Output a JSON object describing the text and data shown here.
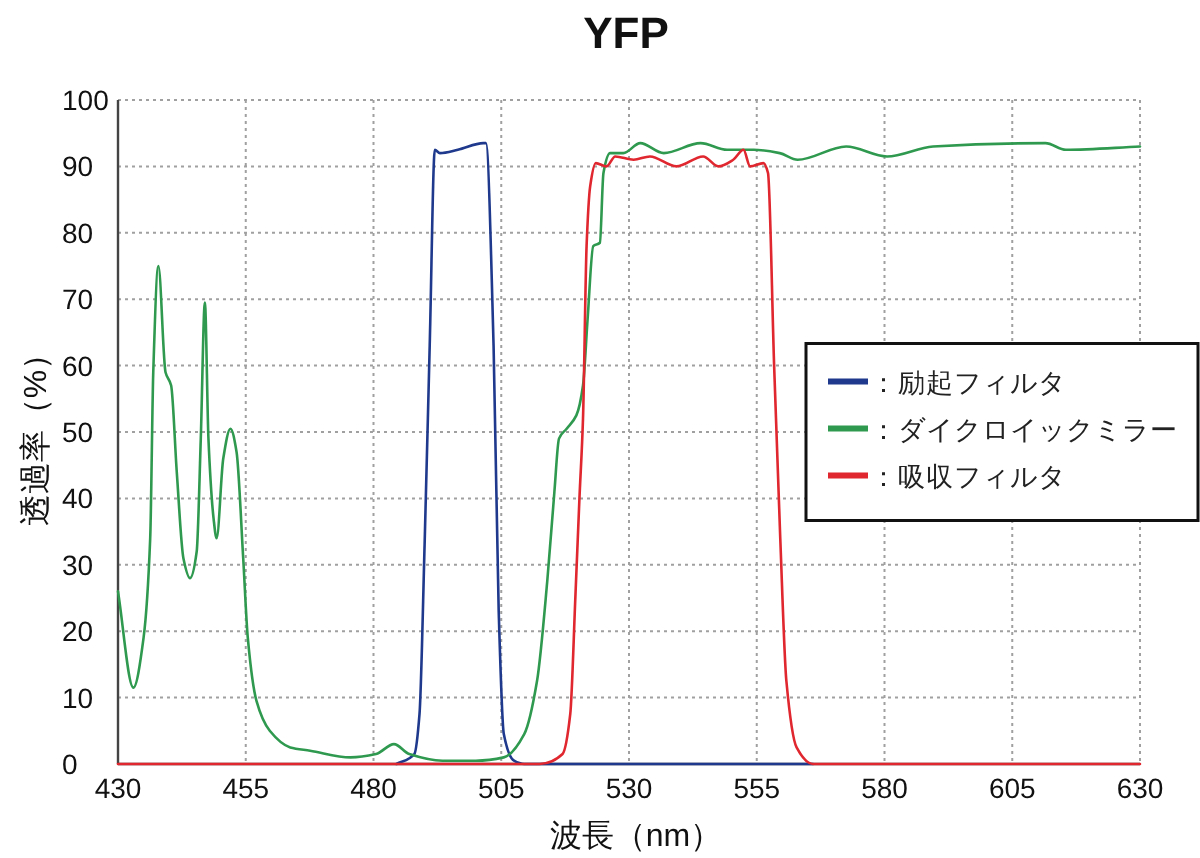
{
  "chart_data": {
    "type": "line",
    "title": "YFP",
    "xlabel": "波長（nm）",
    "ylabel": "透過率（%）",
    "xlim": [
      430,
      630
    ],
    "ylim": [
      0,
      100
    ],
    "xticks": [
      430,
      455,
      480,
      505,
      530,
      555,
      580,
      605,
      630
    ],
    "yticks": [
      0,
      10,
      20,
      30,
      40,
      50,
      60,
      70,
      80,
      90,
      100
    ],
    "grid": true,
    "legend": "right",
    "series": [
      {
        "name": "：励起フィルタ",
        "color": "#1f3a8c",
        "x": [
          484.5,
          488,
          489,
          490,
          491,
          492,
          493,
          496.5,
          501.5,
          502,
          503.5,
          504.5,
          505.5,
          507.5,
          509.5,
          566
        ],
        "values": [
          0,
          1.5,
          7.5,
          33,
          63,
          92.5,
          92,
          92.5,
          93.5,
          93.5,
          63,
          23,
          4.5,
          0.5,
          0,
          0
        ]
      },
      {
        "name": "：ダイクロイックミラー",
        "color": "#2f9a4f",
        "x": [
          430,
          433,
          435,
          436.3,
          436.9,
          437.9,
          439.3,
          440.4,
          441.5,
          442.8,
          444.1,
          445.4,
          446.2,
          447,
          447.7,
          448.7,
          449.3,
          450.6,
          452,
          453.2,
          454.5,
          455.4,
          457.1,
          459.7,
          463.7,
          467.6,
          475.5,
          480.5,
          484,
          487,
          493.5,
          500,
          505.5,
          509.5,
          512,
          514,
          515.4,
          516.3,
          517.8,
          519.7,
          521,
          521.9,
          523,
          524.3,
          525,
          526.3,
          528.9,
          532.2,
          536.8,
          544,
          549.2,
          554.4,
          559.5,
          563,
          572.5,
          580.5,
          589.5,
          611.5,
          615.5,
          630
        ],
        "values": [
          26,
          11.5,
          19,
          34,
          59,
          75,
          59,
          57,
          44,
          31,
          28,
          32,
          49,
          69.5,
          49,
          37,
          34,
          46,
          50.5,
          47,
          31,
          19,
          9.5,
          5,
          2.5,
          2,
          1,
          1.5,
          3,
          1.5,
          0.5,
          0.5,
          1,
          4.5,
          12.5,
          27.5,
          41,
          49,
          50.5,
          52.5,
          57,
          67,
          78,
          78.5,
          89,
          92,
          92,
          93.5,
          92,
          93.5,
          92.5,
          92.5,
          92,
          91,
          93,
          91.5,
          93,
          93.5,
          92.5,
          93
        ]
      },
      {
        "name": "：吸収フィルタ",
        "color": "#e0262e",
        "x": [
          430,
          512.5,
          517,
          518.5,
          519.5,
          520.3,
          521,
          521.7,
          522.4,
          523.5,
          525.6,
          527.3,
          530.9,
          534.1,
          539.3,
          544.5,
          547.5,
          550.4,
          552.4,
          553.7,
          556.3,
          557.2,
          558.4,
          559.6,
          560.8,
          562.8,
          566,
          630
        ],
        "values": [
          0,
          0,
          1.5,
          7.5,
          25,
          40,
          52,
          78,
          87,
          90.5,
          90,
          91.5,
          91,
          91.5,
          90,
          91.5,
          90,
          91,
          92.5,
          90,
          90.5,
          89,
          60,
          34,
          12.5,
          2.5,
          0,
          0
        ]
      }
    ]
  }
}
